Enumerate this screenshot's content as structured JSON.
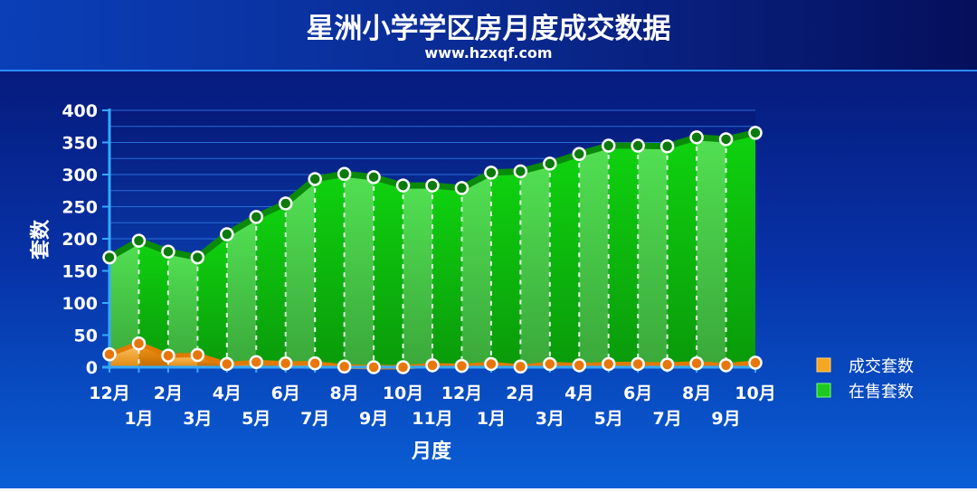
{
  "chart_data": {
    "type": "area",
    "title": "星洲小学学区房月度成交数据",
    "subtitle": "www.hzxqf.com",
    "xlabel": "月度",
    "ylabel": "套数",
    "ylim": [
      0,
      400
    ],
    "yticks": [
      0,
      50,
      100,
      150,
      200,
      250,
      300,
      350,
      400
    ],
    "grid": true,
    "legend_position": "right",
    "categories": [
      "12月",
      "1月",
      "2月",
      "3月",
      "4月",
      "5月",
      "6月",
      "7月",
      "8月",
      "9月",
      "10月",
      "11月",
      "12月",
      "1月",
      "2月",
      "3月",
      "4月",
      "5月",
      "6月",
      "7月",
      "8月",
      "9月",
      "10月"
    ],
    "series": [
      {
        "name": "成交套数",
        "color": "#f5a623",
        "values": [
          20,
          37,
          18,
          19,
          5,
          8,
          6,
          6,
          1,
          0,
          0,
          3,
          2,
          5,
          1,
          5,
          3,
          5,
          5,
          4,
          6,
          3,
          7
        ]
      },
      {
        "name": "在售套数",
        "color": "#1ec81e",
        "values": [
          171,
          197,
          180,
          171,
          207,
          234,
          255,
          293,
          301,
          296,
          283,
          283,
          279,
          303,
          305,
          317,
          332,
          345,
          345,
          344,
          358,
          355,
          365
        ]
      }
    ]
  }
}
